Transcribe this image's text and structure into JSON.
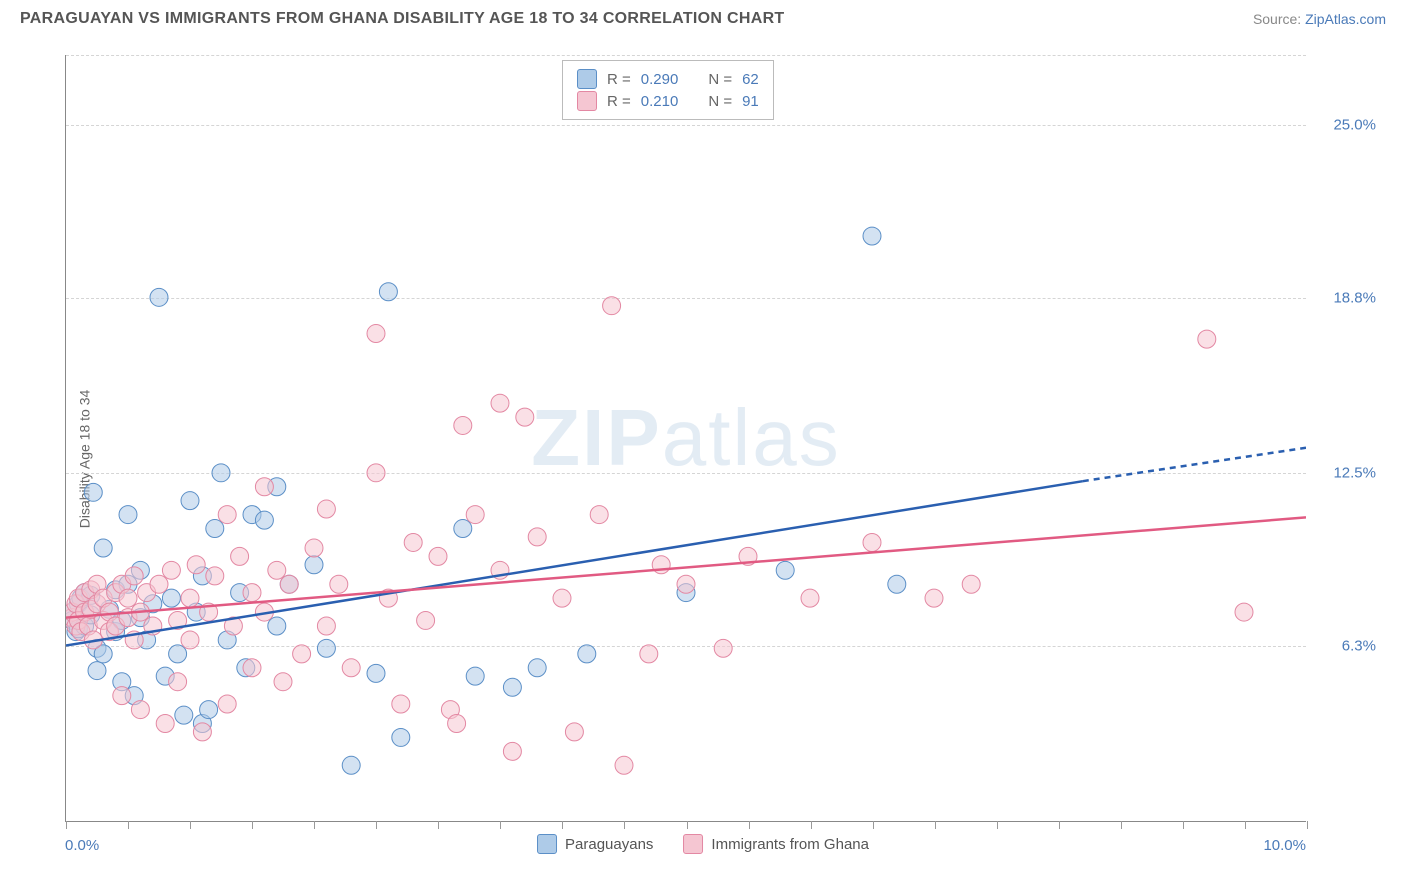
{
  "title": "PARAGUAYAN VS IMMIGRANTS FROM GHANA DISABILITY AGE 18 TO 34 CORRELATION CHART",
  "source_label": "Source: ",
  "source_link": "ZipAtlas.com",
  "watermark": "ZIPatlas",
  "ylabel": "Disability Age 18 to 34",
  "chart": {
    "type": "scatter",
    "xlim": [
      0.0,
      10.0
    ],
    "ylim": [
      0.0,
      27.5
    ],
    "x_min_label": "0.0%",
    "x_max_label": "10.0%",
    "ytick_values": [
      6.3,
      12.5,
      18.8,
      25.0
    ],
    "ytick_labels": [
      "6.3%",
      "12.5%",
      "18.8%",
      "25.0%"
    ],
    "xtick_values": [
      0.0,
      0.5,
      1.0,
      1.5,
      2.0,
      2.5,
      3.0,
      3.5,
      4.0,
      4.5,
      5.0,
      5.5,
      6.0,
      6.5,
      7.0,
      7.5,
      8.0,
      8.5,
      9.0,
      9.5,
      10.0
    ],
    "background_color": "#ffffff",
    "grid_color": "#d5d5d5",
    "axis_color": "#888888",
    "marker_radius": 9,
    "marker_opacity": 0.55,
    "line_width": 2.5,
    "series": [
      {
        "name": "Paraguayans",
        "color_fill": "#aecbe8",
        "color_stroke": "#5b8fc7",
        "line_color": "#2a5fb0",
        "r_value": "0.290",
        "n_value": "62",
        "trend": {
          "x1": 0.0,
          "y1": 6.3,
          "x2": 8.2,
          "y2": 12.2,
          "x2_ext": 10.0,
          "y2_ext": 13.4
        },
        "points": [
          [
            0.05,
            7.5
          ],
          [
            0.05,
            7.2
          ],
          [
            0.08,
            6.8
          ],
          [
            0.1,
            7.8
          ],
          [
            0.1,
            6.9
          ],
          [
            0.12,
            8.0
          ],
          [
            0.15,
            8.2
          ],
          [
            0.15,
            7.0
          ],
          [
            0.2,
            7.4
          ],
          [
            0.2,
            8.1
          ],
          [
            0.22,
            11.8
          ],
          [
            0.25,
            6.2
          ],
          [
            0.25,
            5.4
          ],
          [
            0.3,
            6.0
          ],
          [
            0.3,
            9.8
          ],
          [
            0.35,
            7.6
          ],
          [
            0.4,
            8.3
          ],
          [
            0.4,
            6.8
          ],
          [
            0.45,
            5.0
          ],
          [
            0.45,
            7.2
          ],
          [
            0.5,
            8.5
          ],
          [
            0.5,
            11.0
          ],
          [
            0.55,
            4.5
          ],
          [
            0.6,
            7.3
          ],
          [
            0.6,
            9.0
          ],
          [
            0.65,
            6.5
          ],
          [
            0.7,
            7.8
          ],
          [
            0.75,
            18.8
          ],
          [
            0.8,
            5.2
          ],
          [
            0.85,
            8.0
          ],
          [
            0.9,
            6.0
          ],
          [
            0.95,
            3.8
          ],
          [
            1.0,
            11.5
          ],
          [
            1.05,
            7.5
          ],
          [
            1.1,
            3.5
          ],
          [
            1.1,
            8.8
          ],
          [
            1.15,
            4.0
          ],
          [
            1.2,
            10.5
          ],
          [
            1.25,
            12.5
          ],
          [
            1.3,
            6.5
          ],
          [
            1.4,
            8.2
          ],
          [
            1.45,
            5.5
          ],
          [
            1.5,
            11.0
          ],
          [
            1.6,
            10.8
          ],
          [
            1.7,
            7.0
          ],
          [
            1.7,
            12.0
          ],
          [
            1.8,
            8.5
          ],
          [
            2.0,
            9.2
          ],
          [
            2.1,
            6.2
          ],
          [
            2.3,
            2.0
          ],
          [
            2.5,
            5.3
          ],
          [
            2.6,
            19.0
          ],
          [
            2.7,
            3.0
          ],
          [
            3.2,
            10.5
          ],
          [
            3.3,
            5.2
          ],
          [
            3.6,
            4.8
          ],
          [
            3.8,
            5.5
          ],
          [
            4.2,
            6.0
          ],
          [
            5.0,
            8.2
          ],
          [
            5.8,
            9.0
          ],
          [
            6.5,
            21.0
          ],
          [
            6.7,
            8.5
          ]
        ]
      },
      {
        "name": "Immigrants from Ghana",
        "color_fill": "#f5c6d2",
        "color_stroke": "#e388a3",
        "line_color": "#e15a82",
        "r_value": "0.210",
        "n_value": "91",
        "trend": {
          "x1": 0.0,
          "y1": 7.3,
          "x2": 10.0,
          "y2": 10.9,
          "x2_ext": 10.0,
          "y2_ext": 10.9
        },
        "points": [
          [
            0.05,
            7.3
          ],
          [
            0.05,
            7.5
          ],
          [
            0.08,
            7.0
          ],
          [
            0.08,
            7.8
          ],
          [
            0.1,
            8.0
          ],
          [
            0.1,
            7.2
          ],
          [
            0.12,
            6.8
          ],
          [
            0.15,
            7.5
          ],
          [
            0.15,
            8.2
          ],
          [
            0.18,
            7.0
          ],
          [
            0.2,
            8.3
          ],
          [
            0.2,
            7.6
          ],
          [
            0.22,
            6.5
          ],
          [
            0.25,
            7.8
          ],
          [
            0.25,
            8.5
          ],
          [
            0.3,
            7.2
          ],
          [
            0.3,
            8.0
          ],
          [
            0.35,
            7.5
          ],
          [
            0.35,
            6.8
          ],
          [
            0.4,
            8.2
          ],
          [
            0.4,
            7.0
          ],
          [
            0.45,
            4.5
          ],
          [
            0.45,
            8.5
          ],
          [
            0.5,
            7.3
          ],
          [
            0.5,
            8.0
          ],
          [
            0.55,
            8.8
          ],
          [
            0.55,
            6.5
          ],
          [
            0.6,
            7.5
          ],
          [
            0.6,
            4.0
          ],
          [
            0.65,
            8.2
          ],
          [
            0.7,
            7.0
          ],
          [
            0.75,
            8.5
          ],
          [
            0.8,
            3.5
          ],
          [
            0.85,
            9.0
          ],
          [
            0.9,
            7.2
          ],
          [
            0.9,
            5.0
          ],
          [
            1.0,
            8.0
          ],
          [
            1.0,
            6.5
          ],
          [
            1.05,
            9.2
          ],
          [
            1.1,
            3.2
          ],
          [
            1.15,
            7.5
          ],
          [
            1.2,
            8.8
          ],
          [
            1.3,
            11.0
          ],
          [
            1.3,
            4.2
          ],
          [
            1.35,
            7.0
          ],
          [
            1.4,
            9.5
          ],
          [
            1.5,
            8.2
          ],
          [
            1.5,
            5.5
          ],
          [
            1.6,
            12.0
          ],
          [
            1.6,
            7.5
          ],
          [
            1.7,
            9.0
          ],
          [
            1.75,
            5.0
          ],
          [
            1.8,
            8.5
          ],
          [
            1.9,
            6.0
          ],
          [
            2.0,
            9.8
          ],
          [
            2.1,
            11.2
          ],
          [
            2.1,
            7.0
          ],
          [
            2.2,
            8.5
          ],
          [
            2.3,
            5.5
          ],
          [
            2.5,
            12.5
          ],
          [
            2.5,
            17.5
          ],
          [
            2.6,
            8.0
          ],
          [
            2.7,
            4.2
          ],
          [
            2.8,
            10.0
          ],
          [
            2.9,
            7.2
          ],
          [
            3.0,
            9.5
          ],
          [
            3.1,
            4.0
          ],
          [
            3.15,
            3.5
          ],
          [
            3.2,
            14.2
          ],
          [
            3.3,
            11.0
          ],
          [
            3.5,
            9.0
          ],
          [
            3.5,
            15.0
          ],
          [
            3.6,
            2.5
          ],
          [
            3.7,
            14.5
          ],
          [
            3.8,
            10.2
          ],
          [
            4.0,
            8.0
          ],
          [
            4.1,
            3.2
          ],
          [
            4.3,
            11.0
          ],
          [
            4.4,
            18.5
          ],
          [
            4.5,
            2.0
          ],
          [
            4.7,
            6.0
          ],
          [
            4.8,
            9.2
          ],
          [
            5.0,
            8.5
          ],
          [
            5.3,
            6.2
          ],
          [
            5.5,
            9.5
          ],
          [
            6.0,
            8.0
          ],
          [
            6.5,
            10.0
          ],
          [
            7.0,
            8.0
          ],
          [
            7.3,
            8.5
          ],
          [
            9.2,
            17.3
          ],
          [
            9.5,
            7.5
          ]
        ]
      }
    ]
  },
  "legend_bottom": [
    {
      "label": "Paraguayans",
      "color": "#aecbe8",
      "border": "#5b8fc7"
    },
    {
      "label": "Immigrants from Ghana",
      "color": "#f5c6d2",
      "border": "#e388a3"
    }
  ],
  "corr_legend": {
    "r_label": "R =",
    "n_label": "N ="
  }
}
